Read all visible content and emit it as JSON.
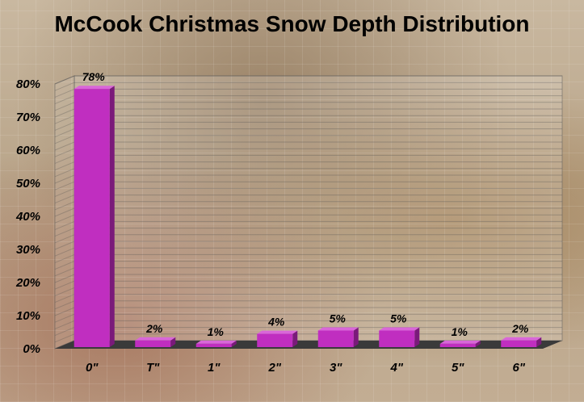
{
  "chart_data": {
    "type": "bar",
    "title": "McCook Christmas Snow Depth Distribution",
    "categories": [
      "0\"",
      "T\"",
      "1\"",
      "2\"",
      "3\"",
      "4\"",
      "5\"",
      "6\""
    ],
    "values": [
      78,
      2,
      1,
      4,
      5,
      5,
      1,
      2
    ],
    "data_labels": [
      "78%",
      "2%",
      "1%",
      "4%",
      "5%",
      "5%",
      "1%",
      "2%"
    ],
    "y_ticks": [
      "0%",
      "10%",
      "20%",
      "30%",
      "40%",
      "50%",
      "60%",
      "70%",
      "80%"
    ],
    "ylim": [
      0,
      80
    ],
    "xlabel": "",
    "ylabel": "",
    "grid": true,
    "bar_color": "#c02ec0",
    "bar_side_color": "#7a1a7a",
    "bar_top_color": "#d966d9",
    "floor_color": "#3a3a3a"
  }
}
